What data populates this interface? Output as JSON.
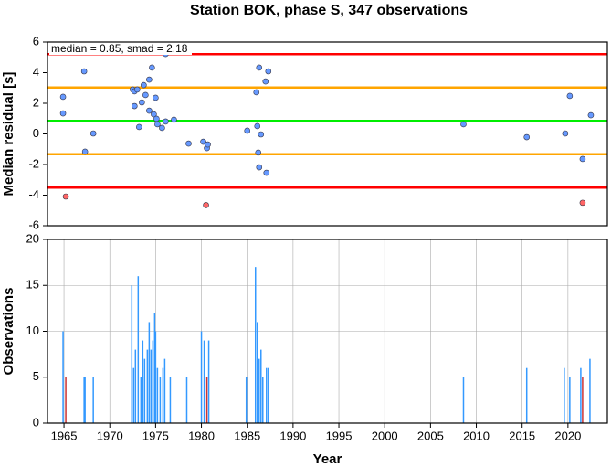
{
  "title": "Station BOK, phase S, 347 observations",
  "chart_data": [
    {
      "type": "scatter",
      "y_label": "Median residual [s]",
      "annotation": "median = 0.85, smad = 2.18",
      "xlim": [
        1963.2,
        2024.3
      ],
      "ylim": [
        -6,
        6
      ],
      "yticks": [
        -6,
        -4,
        -2,
        0,
        2,
        4,
        6
      ],
      "hlines": [
        {
          "value": 5.21,
          "color": "#ff0000"
        },
        {
          "value": 3.03,
          "color": "#ffa500"
        },
        {
          "value": 0.85,
          "color": "#00ee00"
        },
        {
          "value": -1.33,
          "color": "#ffa500"
        },
        {
          "value": -3.51,
          "color": "#ff0000"
        }
      ],
      "series": [
        {
          "color": "#6699ff",
          "x": [
            1964.9,
            1964.9,
            1967.2,
            1967.3,
            1968.2,
            1972.5,
            1972.7,
            1973.0,
            1972.7,
            1973.2,
            1973.5,
            1973.7,
            1973.9,
            1974.3,
            1974.6,
            1974.3,
            1974.8,
            1975.0,
            1975.1,
            1975.2,
            1975.7,
            1976.1,
            1976.1,
            1977.0,
            1978.6,
            1980.2,
            1980.6,
            1980.7,
            1985.0,
            1986.0,
            1986.3,
            1986.1,
            1986.2,
            1986.5,
            1986.3,
            1987.0,
            1987.3,
            1987.1,
            2008.6,
            2015.5,
            2019.7,
            2020.2,
            2021.6,
            2022.5
          ],
          "values": [
            2.42,
            1.34,
            4.09,
            -1.16,
            0.03,
            2.9,
            2.78,
            2.9,
            1.82,
            0.45,
            2.06,
            3.19,
            2.54,
            3.55,
            4.33,
            1.52,
            1.28,
            2.36,
            0.99,
            0.63,
            0.39,
            5.22,
            0.81,
            0.93,
            -0.63,
            -0.51,
            -0.93,
            -0.69,
            0.21,
            2.72,
            4.33,
            0.51,
            -1.22,
            -0.03,
            -2.18,
            3.43,
            4.09,
            -2.54,
            0.63,
            -0.21,
            0.03,
            2.48,
            -1.64,
            1.22
          ]
        },
        {
          "color": "#ff6666",
          "x": [
            1965.2,
            1980.5,
            2021.6
          ],
          "values": [
            -4.09,
            -4.65,
            -4.5
          ]
        }
      ]
    },
    {
      "type": "bar",
      "x_label": "Year",
      "y_label": "Observations",
      "xlim": [
        1963.2,
        2024.3
      ],
      "ylim": [
        0,
        20
      ],
      "yticks": [
        0,
        5,
        10,
        15,
        20
      ],
      "xticks": [
        1965,
        1970,
        1975,
        1980,
        1985,
        1990,
        1995,
        2000,
        2005,
        2010,
        2015,
        2020
      ],
      "grid": true,
      "series": [
        {
          "color": "#3399ff",
          "x": [
            1964.9,
            1967.2,
            1967.3,
            1968.2,
            1972.4,
            1972.6,
            1972.8,
            1973.1,
            1973.4,
            1973.6,
            1973.8,
            1974.1,
            1974.3,
            1974.5,
            1974.7,
            1974.9,
            1975.0,
            1975.2,
            1975.5,
            1975.8,
            1976.0,
            1976.6,
            1978.4,
            1980.0,
            1980.3,
            1980.8,
            1984.9,
            1985.9,
            1986.1,
            1986.3,
            1986.5,
            1986.7,
            1987.1,
            1987.3,
            2008.6,
            2015.5,
            2019.6,
            2020.2,
            2021.4,
            2022.4
          ],
          "values": [
            10,
            5,
            5,
            5,
            15,
            6,
            8,
            16,
            5,
            9,
            7,
            8,
            11,
            8,
            9,
            12,
            10,
            6,
            5,
            6,
            7,
            5,
            5,
            10,
            9,
            9,
            5,
            17,
            11,
            7,
            8,
            5,
            6,
            6,
            5,
            6,
            6,
            5,
            6,
            7
          ]
        },
        {
          "color": "#cc3333",
          "x": [
            1965.2,
            1980.6,
            2021.6
          ],
          "values": [
            5,
            5,
            5
          ]
        }
      ]
    }
  ]
}
